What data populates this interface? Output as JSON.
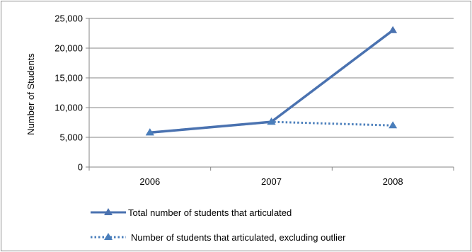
{
  "chart_data": {
    "type": "line",
    "title": "",
    "xlabel": "",
    "ylabel": "Number of Students",
    "categories": [
      "2006",
      "2007",
      "2008"
    ],
    "ylim": [
      0,
      25000
    ],
    "y_ticks": [
      0,
      5000,
      10000,
      15000,
      20000,
      25000
    ],
    "y_tick_labels": [
      "0",
      "5,000",
      "10,000",
      "15,000",
      "20,000",
      "25,000"
    ],
    "grid": true,
    "legend_position": "bottom",
    "series": [
      {
        "name": "Total number of students that articulated",
        "values": [
          5800,
          7600,
          23000
        ],
        "color": "#4a72b0",
        "style": "solid",
        "marker": "triangle"
      },
      {
        "name": "Number of students that articulated, excluding outlier",
        "values": [
          5800,
          7600,
          7000
        ],
        "color": "#4a7ebb",
        "style": "dotted",
        "marker": "triangle"
      }
    ]
  }
}
